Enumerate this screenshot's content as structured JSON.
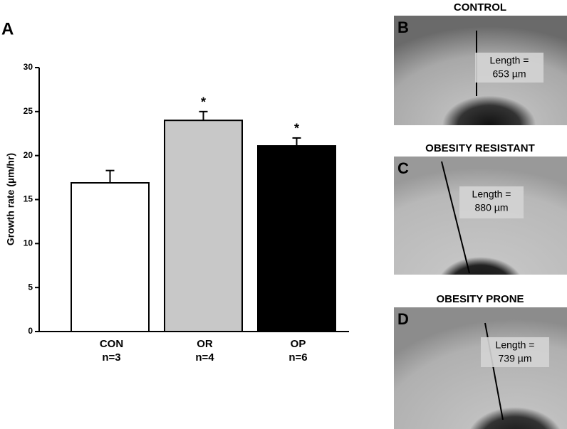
{
  "panel_label": "A",
  "chart_data": {
    "type": "bar",
    "ylabel": "Growth rate (µm/hr)",
    "categories": [
      "CON",
      "OR",
      "OP"
    ],
    "n_labels": [
      "n=3",
      "n=4",
      "n=6"
    ],
    "values": [
      16.9,
      24.0,
      21.1
    ],
    "errors": [
      1.4,
      1.0,
      0.9
    ],
    "significance_labels": [
      null,
      "*",
      "*"
    ],
    "colors": [
      "#ffffff",
      "#c8c8c8",
      "#000000"
    ],
    "ylim": [
      0,
      30
    ],
    "yticks": [
      0,
      5,
      10,
      15,
      20,
      25,
      30
    ]
  },
  "panels": [
    {
      "title": "CONTROL",
      "letter": "B",
      "length_label": "Length =",
      "length_value": "653 µm"
    },
    {
      "title": "OBESITY RESISTANT",
      "letter": "C",
      "length_label": "Length =",
      "length_value": "880 µm"
    },
    {
      "title": "OBESITY PRONE",
      "letter": "D",
      "length_label": "Length =",
      "length_value": "739 µm"
    }
  ]
}
